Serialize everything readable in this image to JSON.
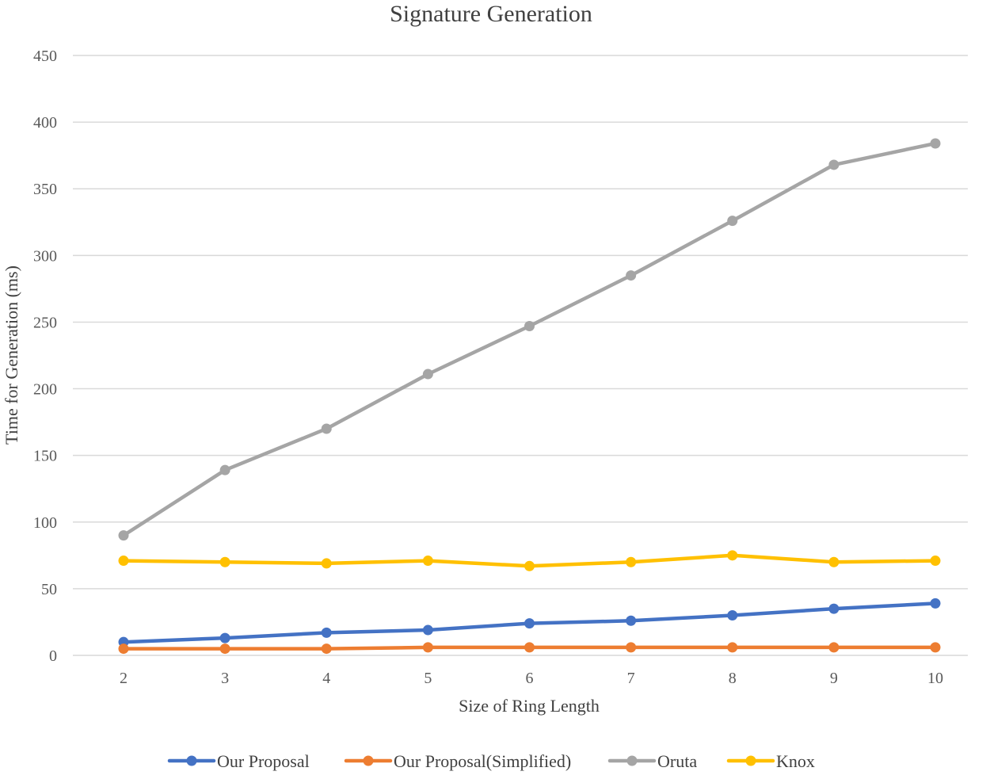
{
  "chart_data": {
    "type": "line",
    "title": "Signature Generation",
    "xlabel": "Size of Ring Length",
    "ylabel": "Time for Generation (ms)",
    "x": [
      2,
      3,
      4,
      5,
      6,
      7,
      8,
      9,
      10
    ],
    "ylim": [
      0,
      450
    ],
    "yticks": [
      0,
      50,
      100,
      150,
      200,
      250,
      300,
      350,
      400,
      450
    ],
    "grid": true,
    "legend_position": "bottom",
    "series": [
      {
        "name": "Our Proposal",
        "color": "#4472c4",
        "values": [
          10,
          13,
          17,
          19,
          24,
          26,
          30,
          35,
          39
        ]
      },
      {
        "name": "Our Proposal(Simplified)",
        "color": "#ed7d31",
        "values": [
          5,
          5,
          5,
          6,
          6,
          6,
          6,
          6,
          6
        ]
      },
      {
        "name": "Oruta",
        "color": "#a5a5a5",
        "values": [
          90,
          139,
          170,
          211,
          247,
          285,
          326,
          368,
          384
        ]
      },
      {
        "name": "Knox",
        "color": "#ffc000",
        "values": [
          71,
          70,
          69,
          71,
          67,
          70,
          75,
          70,
          71
        ]
      }
    ]
  }
}
